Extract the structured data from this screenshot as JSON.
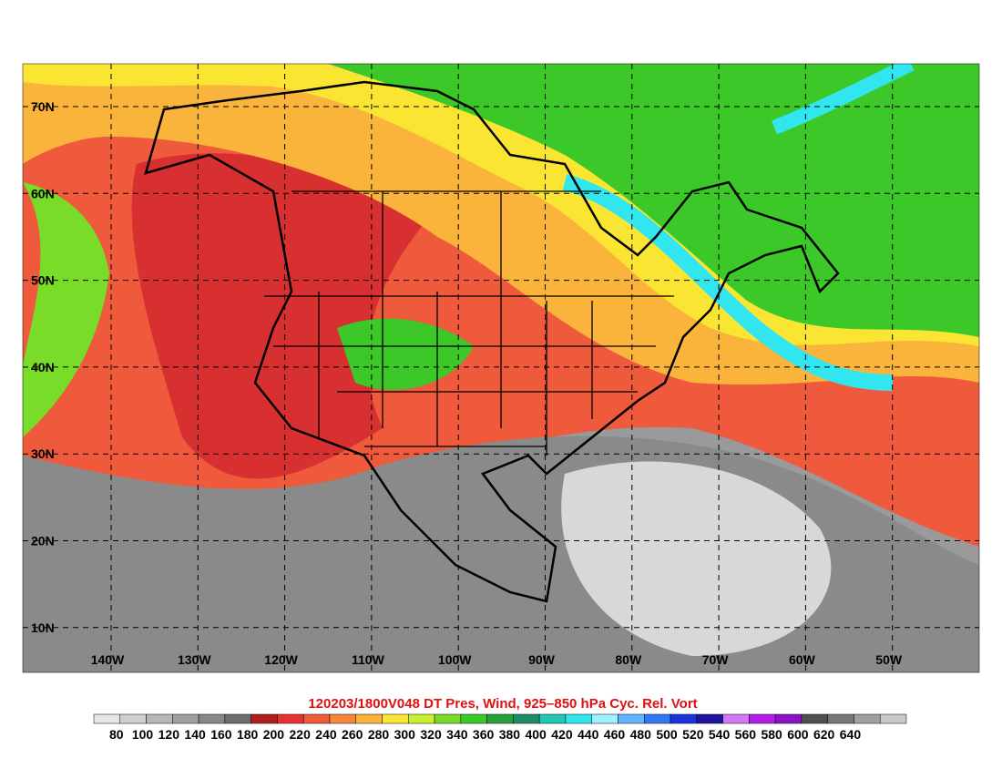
{
  "title": "120203/1800V048 DT Pres, Wind, 925–850 hPa Cyc. Rel. Vort",
  "map": {
    "lat_labels": [
      "70N",
      "60N",
      "50N",
      "40N",
      "30N",
      "20N",
      "10N"
    ],
    "lon_labels": [
      "140W",
      "130W",
      "120W",
      "110W",
      "100W",
      "90W",
      "80W",
      "70W",
      "60W",
      "50W"
    ]
  },
  "colorbar": {
    "labels": [
      80,
      100,
      120,
      140,
      160,
      180,
      200,
      220,
      240,
      260,
      280,
      300,
      320,
      340,
      360,
      380,
      400,
      420,
      440,
      460,
      480,
      500,
      520,
      540,
      560,
      580,
      600,
      620,
      640
    ],
    "colors": [
      "#e6e6e6",
      "#cfcfcf",
      "#b8b8b8",
      "#a0a0a0",
      "#888888",
      "#6e6e6e",
      "#b01e1e",
      "#e83232",
      "#f05a3c",
      "#f5873c",
      "#fab43c",
      "#fae632",
      "#c8f032",
      "#78dc28",
      "#3cc828",
      "#28a03c",
      "#1e8c64",
      "#1ec8b4",
      "#32e6f0",
      "#a0f0ff",
      "#64b4ff",
      "#3278f0",
      "#1e32dc",
      "#1e14a0",
      "#d278f0",
      "#b41ee6",
      "#8c14c8",
      "#505050",
      "#787878",
      "#a0a0a0",
      "#c8c8c8"
    ]
  }
}
